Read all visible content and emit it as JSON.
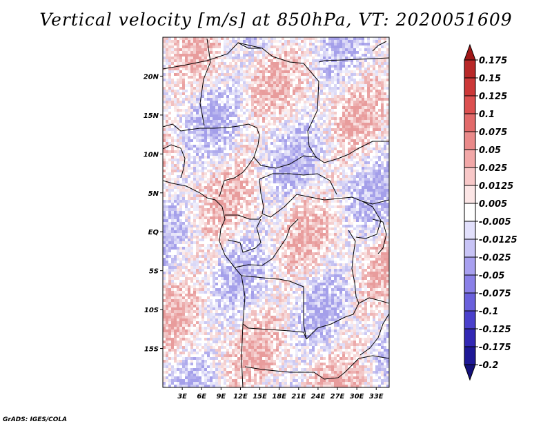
{
  "title": "Vertical velocity [m/s] at 850hPa, VT: 2020051609",
  "credit": "GrADS: IGES/COLA",
  "map": {
    "lon_range": [
      0,
      35
    ],
    "lat_range": [
      -20,
      25
    ],
    "lon_ticks": [
      {
        "value": 3,
        "label": "3E"
      },
      {
        "value": 6,
        "label": "6E"
      },
      {
        "value": 9,
        "label": "9E"
      },
      {
        "value": 12,
        "label": "12E"
      },
      {
        "value": 15,
        "label": "15E"
      },
      {
        "value": 18,
        "label": "18E"
      },
      {
        "value": 21,
        "label": "21E"
      },
      {
        "value": 24,
        "label": "24E"
      },
      {
        "value": 27,
        "label": "27E"
      },
      {
        "value": 30,
        "label": "30E"
      },
      {
        "value": 33,
        "label": "33E"
      }
    ],
    "lat_ticks": [
      {
        "value": 20,
        "label": "20N"
      },
      {
        "value": 15,
        "label": "15N"
      },
      {
        "value": 10,
        "label": "10N"
      },
      {
        "value": 5,
        "label": "5N"
      },
      {
        "value": 0,
        "label": "EQ"
      },
      {
        "value": -5,
        "label": "5S"
      },
      {
        "value": -10,
        "label": "10S"
      },
      {
        "value": -15,
        "label": "15S"
      }
    ],
    "field_colors": {
      "positive": "#d64a4a",
      "negative": "#5a50d8",
      "neutral": "#ffffff"
    }
  },
  "colorbar": {
    "labels": [
      "0.175",
      "0.15",
      "0.125",
      "0.1",
      "0.075",
      "0.05",
      "0.025",
      "0.0125",
      "0.005",
      "-0.005",
      "-0.0125",
      "-0.025",
      "-0.05",
      "-0.075",
      "-0.1",
      "-0.125",
      "-0.175",
      "-0.2"
    ],
    "colors": [
      "#a01818",
      "#b82828",
      "#cc3838",
      "#dc5050",
      "#e26a6a",
      "#ea8a8a",
      "#f2a8a8",
      "#f8c8c8",
      "#fce6e6",
      "#ffffff",
      "#e2e0fc",
      "#c8c4f6",
      "#a8a0f0",
      "#8a80e8",
      "#6a60dc",
      "#4a40cc",
      "#3228b4",
      "#1e1896",
      "#14107a"
    ]
  }
}
